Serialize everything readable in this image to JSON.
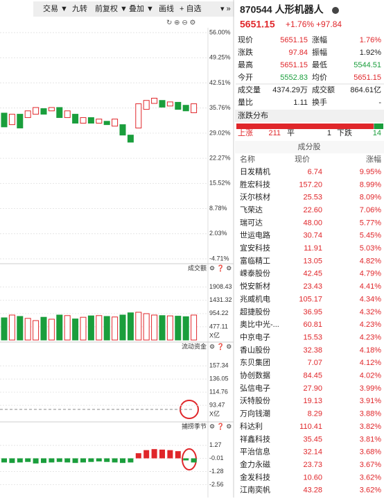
{
  "toolbar": [
    "交易 ▼",
    "九转",
    "前复权 ▼",
    "叠加 ▼",
    "画线",
    "+ 自选"
  ],
  "header": {
    "code_name": "870544 人形机器人",
    "price": "5651.15",
    "change_pct": "+1.76%",
    "change": "+97.84"
  },
  "quote": [
    [
      "现价",
      "5651.15",
      "涨幅",
      "1.76%"
    ],
    [
      "涨跌",
      "97.84",
      "振幅",
      "1.92%"
    ],
    [
      "最高",
      "5651.15",
      "最低",
      "5544.51"
    ],
    [
      "今开",
      "5552.83",
      "均价",
      "5651.15"
    ],
    [
      "成交量",
      "4374.29万",
      "成交额",
      "864.61亿"
    ],
    [
      "量比",
      "1.11",
      "换手",
      "-"
    ]
  ],
  "distribution": {
    "title": "涨跌分布",
    "up_label": "上涨",
    "up": 211,
    "flat_label": "平",
    "flat": 1,
    "down_label": "下跌",
    "down": 14
  },
  "constituents": {
    "title": "成分股",
    "columns": [
      "名称",
      "现价",
      "涨幅"
    ],
    "rows": [
      [
        "日发精机",
        "6.74",
        "9.95%"
      ],
      [
        "胜宏科技",
        "157.20",
        "8.99%"
      ],
      [
        "沃尔核材",
        "25.53",
        "8.09%"
      ],
      [
        "飞荣达",
        "22.60",
        "7.06%"
      ],
      [
        "瑞可达",
        "48.00",
        "5.77%"
      ],
      [
        "世运电路",
        "30.74",
        "5.45%"
      ],
      [
        "宜安科技",
        "11.91",
        "5.03%"
      ],
      [
        "富临精工",
        "13.05",
        "4.82%"
      ],
      [
        "嵘泰股份",
        "42.45",
        "4.79%"
      ],
      [
        "悦安新材",
        "23.43",
        "4.41%"
      ],
      [
        "兆威机电",
        "105.17",
        "4.34%"
      ],
      [
        "超捷股份",
        "36.95",
        "4.32%"
      ],
      [
        "奥比中光-...",
        "60.81",
        "4.23%"
      ],
      [
        "中京电子",
        "15.53",
        "4.23%"
      ],
      [
        "香山股份",
        "32.38",
        "4.18%"
      ],
      [
        "东贝集团",
        "7.07",
        "4.12%"
      ],
      [
        "协创数据",
        "84.45",
        "4.02%"
      ],
      [
        "弘信电子",
        "27.90",
        "3.99%"
      ],
      [
        "沃特股份",
        "19.13",
        "3.91%"
      ],
      [
        "万向钱潮",
        "8.29",
        "3.88%"
      ],
      [
        "科达利",
        "110.41",
        "3.82%"
      ],
      [
        "祥鑫科技",
        "35.45",
        "3.81%"
      ],
      [
        "平治信息",
        "32.14",
        "3.68%"
      ],
      [
        "金力永磁",
        "23.73",
        "3.67%"
      ],
      [
        "金发科技",
        "10.60",
        "3.62%"
      ],
      [
        "江南奕帆",
        "43.28",
        "3.62%"
      ]
    ]
  },
  "kline": {
    "ylim": [
      -4.71,
      56
    ],
    "yticks": [
      {
        "value": 56,
        "label": "56.00%"
      },
      {
        "value": 49.25,
        "label": "49.25%"
      },
      {
        "value": 42.51,
        "label": "42.51%"
      },
      {
        "value": 35.76,
        "label": "35.76%"
      },
      {
        "value": 29.02,
        "label": "29.02%"
      },
      {
        "value": 22.27,
        "label": "22.27%"
      },
      {
        "value": 15.52,
        "label": "15.52%"
      },
      {
        "value": 8.78,
        "label": "8.78%"
      },
      {
        "value": 2.03,
        "label": "2.03%"
      },
      {
        "value": -4.71,
        "label": "-4.71%"
      }
    ],
    "open": [
      34.4,
      31.3,
      34.1,
      33.2,
      34.1,
      35.6,
      35.0,
      35.9,
      33.2,
      34.1,
      31.7,
      33.2,
      31.7,
      32.2,
      30.9,
      31.3,
      28.5,
      30.4,
      35.4,
      37.0,
      37.8,
      36.3,
      37.3,
      36.5,
      34.5
    ],
    "close": [
      30.7,
      34.1,
      30.4,
      35.0,
      35.9,
      34.1,
      35.9,
      33.2,
      35.0,
      31.7,
      33.2,
      31.7,
      32.8,
      31.3,
      32.8,
      28.5,
      26.6,
      36.9,
      37.8,
      38.4,
      36.0,
      37.4,
      35.4,
      35.0,
      36.9
    ]
  },
  "volume": {
    "title": "成交额",
    "unit": "X亿",
    "ylim": [
      0,
      2300
    ],
    "yticks": [
      1908.43,
      1431.32,
      954.22,
      477.11
    ],
    "values": [
      800,
      900,
      850,
      780,
      700,
      820,
      750,
      900,
      880,
      760,
      820,
      870,
      880,
      850,
      830,
      900,
      980,
      1000,
      950,
      900,
      880,
      870,
      860,
      840,
      900
    ]
  },
  "flow": {
    "title": "流动资金",
    "unit": "X亿",
    "ylim": [
      70,
      170
    ],
    "yticks": [
      157.34,
      136.05,
      114.76,
      93.47
    ]
  },
  "season": {
    "title": "捕捞季节",
    "ylim": [
      -2.6,
      2.4
    ],
    "yticks": [
      1.27,
      -0.01,
      -1.28,
      -2.56
    ],
    "values": [
      -0.4,
      -0.45,
      -0.4,
      -0.35,
      -0.5,
      -0.45,
      -0.4,
      -0.35,
      -0.4,
      -0.45,
      -0.4,
      -0.35,
      -0.3,
      -0.35,
      -0.4,
      -0.45,
      -0.4,
      0.5,
      0.8,
      0.9,
      0.85,
      0.8,
      0.7,
      -0.2,
      -0.4
    ]
  }
}
